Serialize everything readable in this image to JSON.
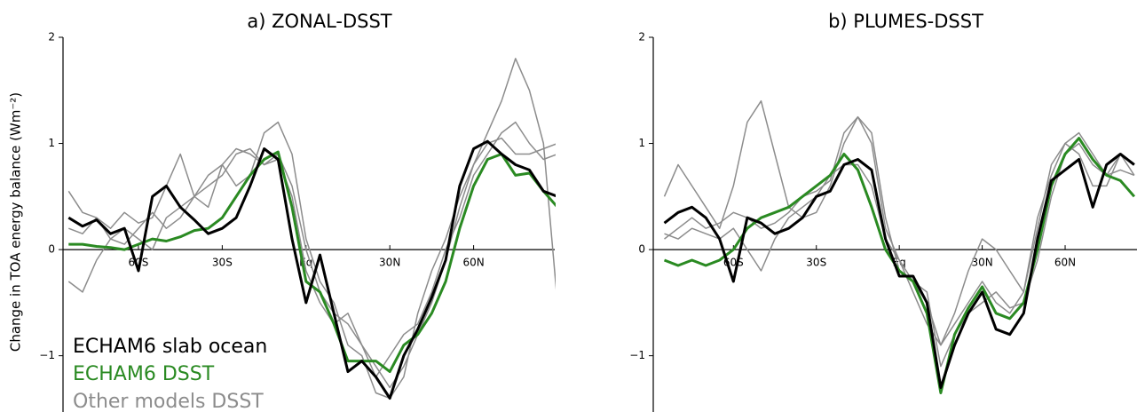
{
  "chart_data": [
    {
      "type": "line",
      "title": "a) ZONAL-DSST",
      "ylabel": "Change in TOA energy balance (Wm⁻²)",
      "legend": "lower left",
      "x": [
        -85,
        -80,
        -75,
        -70,
        -65,
        -60,
        -55,
        -50,
        -45,
        -40,
        -35,
        -30,
        -25,
        -20,
        -15,
        -10,
        -5,
        0,
        5,
        10,
        15,
        20,
        25,
        30,
        35,
        40,
        45,
        50,
        55,
        60,
        65,
        70,
        75,
        80,
        85,
        90
      ],
      "xlim": [
        -87,
        90
      ],
      "ylim": [
        -1.53,
        2
      ],
      "xticks": [
        {
          "value": -60,
          "label": "60S"
        },
        {
          "value": -30,
          "label": "30S"
        },
        {
          "value": 0,
          "label": "Eq"
        },
        {
          "value": 30,
          "label": "30N"
        },
        {
          "value": 60,
          "label": "60N"
        }
      ],
      "yticks": [
        {
          "value": -1,
          "label": "−1"
        },
        0,
        1,
        2
      ],
      "series": [
        {
          "name": "Other models DSST",
          "color": "#8c8c8c",
          "values": [
            0.55,
            0.35,
            0.3,
            0.2,
            0.35,
            0.25,
            0.3,
            0.6,
            0.9,
            0.5,
            0.4,
            0.8,
            0.95,
            0.9,
            0.8,
            0.9,
            0.6,
            0.0,
            -0.4,
            -0.6,
            -0.7,
            -0.9,
            -1.1,
            -1.3,
            -1.1,
            -0.8,
            -0.5,
            -0.1,
            0.4,
            0.8,
            1.1,
            1.4,
            1.8,
            1.5,
            1.0,
            -0.5
          ]
        },
        {
          "color": "#8c8c8c",
          "values": [
            -0.3,
            -0.4,
            -0.1,
            0.1,
            0.2,
            0.1,
            0.0,
            0.3,
            0.4,
            0.5,
            0.7,
            0.8,
            0.6,
            0.7,
            1.1,
            1.2,
            0.9,
            0.1,
            -0.3,
            -0.5,
            -0.9,
            -1.0,
            -1.35,
            -1.4,
            -1.2,
            -0.6,
            -0.2,
            0.1,
            0.5,
            0.8,
            1.0,
            1.05,
            0.9,
            0.9,
            0.95,
            1.0
          ]
        },
        {
          "color": "#8c8c8c",
          "values": [
            0.2,
            0.15,
            0.3,
            0.1,
            0.05,
            0.2,
            0.35,
            0.2,
            0.3,
            0.5,
            0.6,
            0.7,
            0.9,
            0.95,
            0.8,
            0.85,
            0.5,
            -0.2,
            -0.5,
            -0.7,
            -0.6,
            -0.9,
            -1.2,
            -1.0,
            -0.8,
            -0.7,
            -0.4,
            0.0,
            0.3,
            0.7,
            0.9,
            1.1,
            1.2,
            1.0,
            0.85,
            0.9
          ]
        },
        {
          "name": "ECHAM6 DSST",
          "color": "#2a8a22",
          "values": [
            0.05,
            0.05,
            0.03,
            0.02,
            0.0,
            0.05,
            0.1,
            0.08,
            0.12,
            0.18,
            0.2,
            0.3,
            0.5,
            0.7,
            0.85,
            0.92,
            0.4,
            -0.3,
            -0.4,
            -0.7,
            -1.05,
            -1.05,
            -1.05,
            -1.15,
            -0.9,
            -0.8,
            -0.6,
            -0.3,
            0.2,
            0.6,
            0.85,
            0.9,
            0.7,
            0.72,
            0.55,
            0.4
          ]
        },
        {
          "name": "ECHAM6 slab ocean",
          "color": "#000000",
          "values": [
            0.3,
            0.22,
            0.28,
            0.15,
            0.2,
            -0.2,
            0.5,
            0.6,
            0.4,
            0.28,
            0.15,
            0.2,
            0.3,
            0.6,
            0.95,
            0.85,
            0.1,
            -0.5,
            -0.05,
            -0.6,
            -1.15,
            -1.05,
            -1.2,
            -1.4,
            -1.0,
            -0.75,
            -0.45,
            -0.1,
            0.6,
            0.95,
            1.02,
            0.9,
            0.8,
            0.75,
            0.55,
            0.5
          ]
        }
      ]
    },
    {
      "type": "line",
      "title": "b) PLUMES-DSST",
      "x": [
        -85,
        -80,
        -75,
        -70,
        -65,
        -60,
        -55,
        -50,
        -45,
        -40,
        -35,
        -30,
        -25,
        -20,
        -15,
        -10,
        -5,
        0,
        5,
        10,
        15,
        20,
        25,
        30,
        35,
        40,
        45,
        50,
        55,
        60,
        65,
        70,
        75,
        80,
        85
      ],
      "xlim": [
        -89,
        86
      ],
      "ylim": [
        -1.53,
        2
      ],
      "xticks": [
        {
          "value": -60,
          "label": "60S"
        },
        {
          "value": -30,
          "label": "30S"
        },
        {
          "value": 0,
          "label": "Eq"
        },
        {
          "value": 30,
          "label": "30N"
        },
        {
          "value": 60,
          "label": "60N"
        }
      ],
      "yticks": [
        {
          "value": -1,
          "label": "−1"
        },
        0,
        1,
        2
      ],
      "series": [
        {
          "color": "#8c8c8c",
          "values": [
            0.5,
            0.8,
            0.6,
            0.4,
            0.2,
            0.6,
            1.2,
            1.4,
            0.9,
            0.4,
            0.3,
            0.35,
            0.6,
            1.0,
            1.25,
            1.1,
            0.3,
            -0.2,
            -0.3,
            -0.5,
            -0.9,
            -0.6,
            -0.2,
            0.1,
            0.0,
            -0.2,
            -0.4,
            0.3,
            0.7,
            1.0,
            1.1,
            0.9,
            0.7,
            0.9,
            0.8
          ]
        },
        {
          "color": "#8c8c8c",
          "values": [
            0.15,
            0.1,
            0.2,
            0.15,
            0.1,
            0.2,
            0.0,
            -0.2,
            0.1,
            0.3,
            0.4,
            0.5,
            0.7,
            0.8,
            0.8,
            0.6,
            0.1,
            -0.1,
            -0.4,
            -0.7,
            -0.9,
            -0.7,
            -0.5,
            -0.3,
            -0.5,
            -0.6,
            -0.4,
            0.2,
            0.8,
            1.0,
            0.9,
            0.6,
            0.6,
            0.9,
            0.7
          ]
        },
        {
          "color": "#8c8c8c",
          "values": [
            0.1,
            0.2,
            0.3,
            0.2,
            0.25,
            0.35,
            0.3,
            0.2,
            0.25,
            0.35,
            0.5,
            0.55,
            0.65,
            1.1,
            1.25,
            1.0,
            0.2,
            -0.1,
            -0.3,
            -0.4,
            -1.1,
            -0.8,
            -0.6,
            -0.5,
            -0.4,
            -0.55,
            -0.5,
            -0.1,
            0.5,
            0.9,
            1.0,
            0.8,
            0.7,
            0.75,
            0.7
          ]
        },
        {
          "color": "#2a8a22",
          "values": [
            -0.1,
            -0.15,
            -0.1,
            -0.15,
            -0.1,
            0.0,
            0.2,
            0.3,
            0.35,
            0.4,
            0.5,
            0.6,
            0.7,
            0.9,
            0.75,
            0.4,
            0.0,
            -0.2,
            -0.3,
            -0.6,
            -1.35,
            -0.8,
            -0.55,
            -0.35,
            -0.6,
            -0.65,
            -0.5,
            0.0,
            0.6,
            0.9,
            1.05,
            0.85,
            0.7,
            0.65,
            0.5
          ]
        },
        {
          "color": "#000000",
          "values": [
            0.25,
            0.35,
            0.4,
            0.3,
            0.1,
            -0.3,
            0.3,
            0.25,
            0.15,
            0.2,
            0.3,
            0.5,
            0.55,
            0.8,
            0.85,
            0.75,
            0.1,
            -0.25,
            -0.25,
            -0.5,
            -1.3,
            -0.9,
            -0.6,
            -0.4,
            -0.75,
            -0.8,
            -0.6,
            0.1,
            0.65,
            0.75,
            0.85,
            0.4,
            0.8,
            0.9,
            0.8
          ]
        }
      ]
    }
  ]
}
